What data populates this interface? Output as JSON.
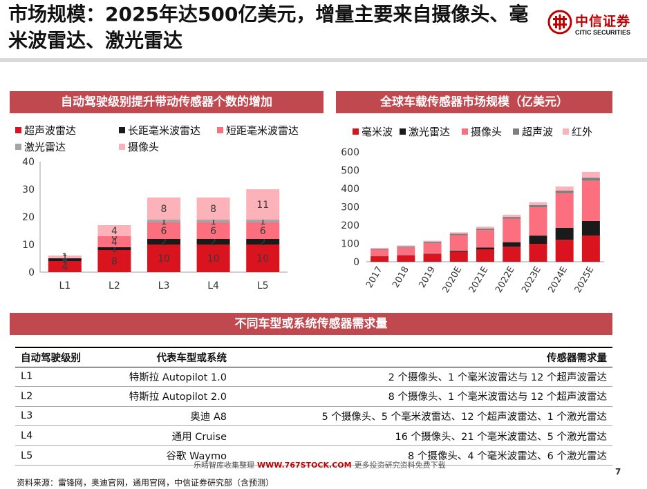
{
  "page": {
    "title": "市场规模：2025年达500亿美元，增量主要来自摄像头、毫米波雷达、激光雷达",
    "logo": {
      "name": "中信证券",
      "en": "CITIC SECURITIES"
    },
    "page_number": "7",
    "source": "资料来源：雷锋网，奥迪官网，通用官网，中信证券研究部（含预测）",
    "watermark": {
      "prefix": "乐晴智库收集整理",
      "url": "WWW.767STOCK.COM",
      "suffix": "更多投资研究资料免费下载"
    }
  },
  "left_panel": {
    "heading": "自动驾驶级别提升带动传感器个数的增加"
  },
  "right_panel": {
    "heading": "全球车载传感器市场规模（亿美元）"
  },
  "chart_data": [
    {
      "type": "bar",
      "stacked": true,
      "categories": [
        "L1",
        "L2",
        "L3",
        "L4",
        "L5"
      ],
      "series": [
        {
          "name": "超声波雷达",
          "color": "#d9141f",
          "values": [
            4,
            8,
            10,
            10,
            10
          ]
        },
        {
          "name": "长距毫米波雷达",
          "color": "#1a1a1a",
          "values": [
            1,
            1,
            2,
            2,
            2
          ]
        },
        {
          "name": "短距毫米波雷达",
          "color": "#fb6f7e",
          "values": [
            0,
            4,
            6,
            6,
            6
          ]
        },
        {
          "name": "激光雷达",
          "color": "#a5a5a5",
          "values": [
            0,
            0,
            1,
            1,
            1
          ]
        },
        {
          "name": "摄像头",
          "color": "#fbb3b9",
          "values": [
            1,
            4,
            8,
            8,
            11
          ]
        }
      ],
      "value_labels": [
        [
          "4",
          "1",
          "0",
          "0",
          "1"
        ],
        [
          "8",
          "1",
          "4",
          "0",
          "4"
        ],
        [
          "10",
          "2",
          "6",
          "1",
          "8"
        ],
        [
          "10",
          "2",
          "6",
          "1",
          "8"
        ],
        [
          "10",
          "2",
          "6",
          "1",
          "11"
        ]
      ],
      "ylim": [
        0,
        40
      ],
      "yticks": [
        0,
        10,
        20,
        30,
        40
      ],
      "grid": false,
      "legend_position": "top"
    },
    {
      "type": "bar",
      "stacked": true,
      "categories": [
        "2017",
        "2018",
        "2019",
        "2020E",
        "2021E",
        "2022E",
        "2023E",
        "2024E",
        "2025E"
      ],
      "series": [
        {
          "name": "毫米波",
          "color": "#d9141f",
          "values": [
            30,
            35,
            42,
            55,
            68,
            82,
            98,
            120,
            143
          ]
        },
        {
          "name": "激光雷达",
          "color": "#1a1a1a",
          "values": [
            1,
            1,
            2,
            5,
            10,
            25,
            45,
            65,
            80
          ]
        },
        {
          "name": "摄像头",
          "color": "#fb6f7e",
          "values": [
            35,
            42,
            58,
            85,
            95,
            128,
            155,
            190,
            220
          ]
        },
        {
          "name": "超声波",
          "color": "#7f7f7f",
          "values": [
            5,
            6,
            7,
            8,
            9,
            10,
            12,
            14,
            16
          ]
        },
        {
          "name": "红外",
          "color": "#fbb3b9",
          "values": [
            4,
            5,
            6,
            8,
            10,
            12,
            15,
            22,
            32
          ]
        }
      ],
      "ylim": [
        0,
        600
      ],
      "yticks": [
        0,
        100,
        200,
        300,
        400,
        500,
        600
      ],
      "grid": false,
      "legend_position": "top"
    }
  ],
  "table": {
    "heading": "不同车型或系统传感器需求量",
    "columns": [
      "自动驾驶级别",
      "代表车型或系统",
      "传感器需求量"
    ],
    "rows": [
      [
        "L1",
        "特斯拉 Autopilot 1.0",
        "2 个摄像头、1 个毫米波雷达与 12 个超声波雷达"
      ],
      [
        "L2",
        "特斯拉 Autopilot 2.0",
        "8 个摄像头、1 个毫米波雷达与 12 个超声波雷达"
      ],
      [
        "L3",
        "奥迪 A8",
        "5 个摄像头、5 个毫米波雷达、12 个超声波雷达、1 个激光雷达"
      ],
      [
        "L4",
        "通用 Cruise",
        "16 个摄像头、21 个毫米波雷达、5 个激光雷达"
      ],
      [
        "L5",
        "谷歌 Waymo",
        "8 个摄像头、4 个毫米波雷达、6 个激光雷达"
      ]
    ]
  }
}
